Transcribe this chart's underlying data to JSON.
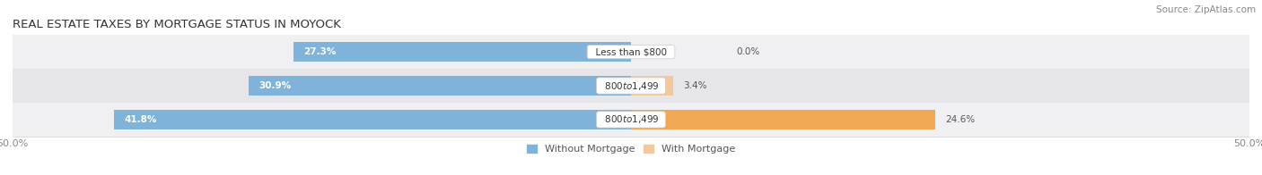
{
  "title": "REAL ESTATE TAXES BY MORTGAGE STATUS IN MOYOCK",
  "source": "Source: ZipAtlas.com",
  "bars": [
    {
      "label": "Less than $800",
      "without_mortgage": 27.3,
      "with_mortgage": 0.0,
      "row_color": "#f0f0f2"
    },
    {
      "label": "$800 to $1,499",
      "without_mortgage": 30.9,
      "with_mortgage": 3.4,
      "row_color": "#e6e6ea"
    },
    {
      "label": "$800 to $1,499",
      "without_mortgage": 41.8,
      "with_mortgage": 24.6,
      "row_color": "#f0f0f2"
    }
  ],
  "x_min": -50.0,
  "x_max": 50.0,
  "color_without": "#7fb3d9",
  "color_with": "#f5c89a",
  "color_with_row3": "#f0a855",
  "bar_height": 0.58,
  "title_fontsize": 9.5,
  "source_fontsize": 7.5,
  "value_fontsize": 7.5,
  "label_fontsize": 7.5,
  "tick_fontsize": 8,
  "legend_fontsize": 8
}
